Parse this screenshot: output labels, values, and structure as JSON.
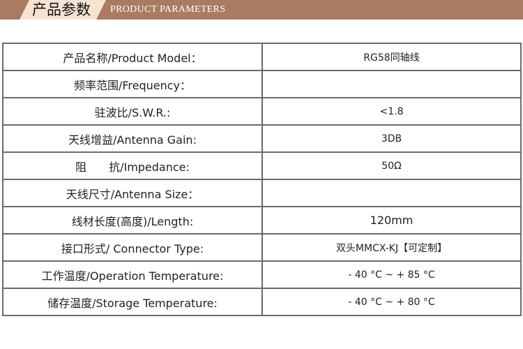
{
  "header": {
    "title_cn": "产品参数",
    "title_en": "PRODUCT  PARAMETERS"
  },
  "colors": {
    "banner": "#a97c61",
    "tag": "#f6e3d3",
    "border": "#6a6a6a"
  },
  "rows": [
    {
      "label": "产品名称/Product Model：",
      "value": "RG58同轴线"
    },
    {
      "label": "频率范围/Frequency：",
      "value": ""
    },
    {
      "label": "驻波比/S.W.R.:",
      "value": "<1.8"
    },
    {
      "label": "天线增益/Antenna Gain:",
      "value": "3DB"
    },
    {
      "label": "阻　　抗/Impedance:",
      "value": "50Ω"
    },
    {
      "label": "天线尺寸/Antenna Size：",
      "value": ""
    },
    {
      "label": "线材长度(高度)/Length:",
      "value": "120mm"
    },
    {
      "label": "接口形式/ Connector Type:",
      "value": "双头MMCX-KJ【可定制】"
    },
    {
      "label": "工作温度/Operation Temperature:",
      "value": "- 40 °C ~ + 85 °C"
    },
    {
      "label": "储存温度/Storage Temperature:",
      "value": "- 40 °C ~ + 80 °C"
    }
  ]
}
